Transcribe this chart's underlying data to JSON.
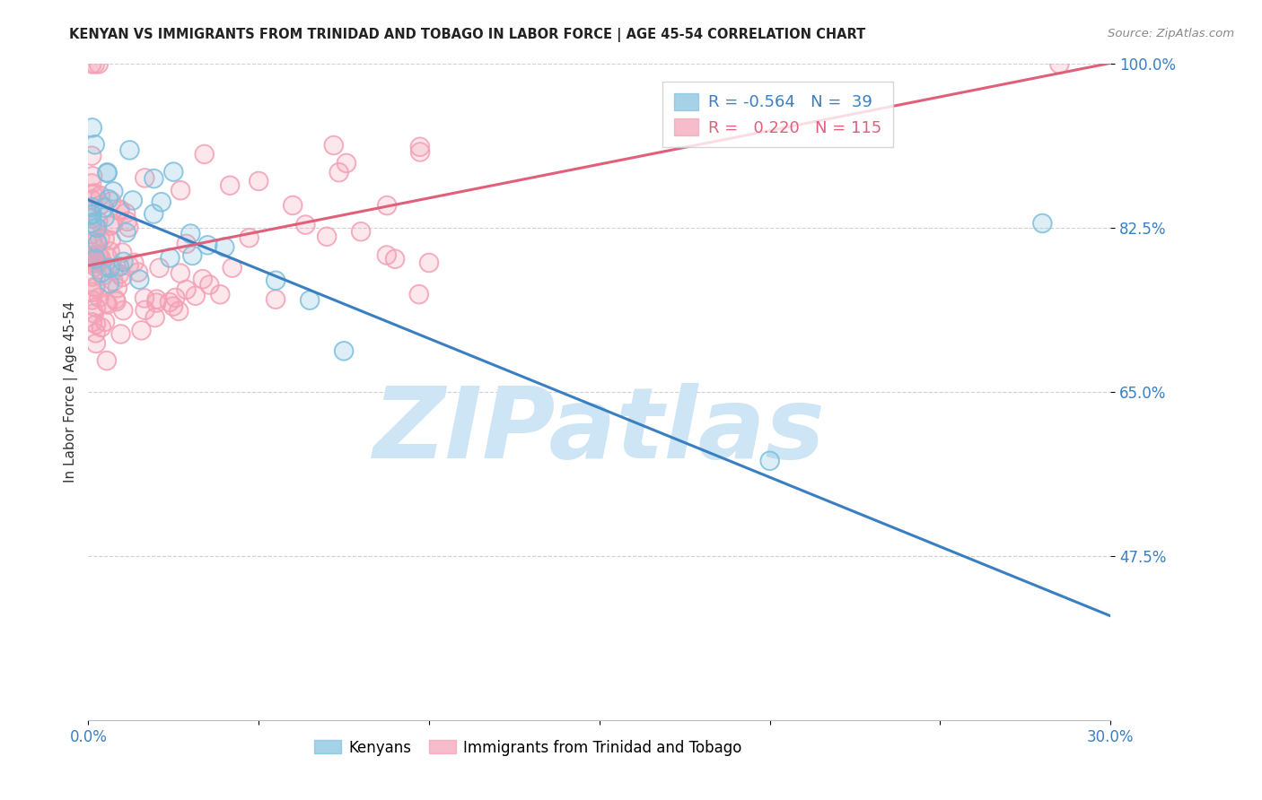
{
  "title": "KENYAN VS IMMIGRANTS FROM TRINIDAD AND TOBAGO IN LABOR FORCE | AGE 45-54 CORRELATION CHART",
  "source": "Source: ZipAtlas.com",
  "ylabel": "In Labor Force | Age 45-54",
  "xmin": 0.0,
  "xmax": 0.3,
  "ymin": 0.3,
  "ymax": 1.0,
  "ytick_vals": [
    0.475,
    0.65,
    0.825,
    1.0
  ],
  "ytick_labels": [
    "47.5%",
    "65.0%",
    "82.5%",
    "100.0%"
  ],
  "blue_color": "#7fbfdd",
  "pink_color": "#f4a0b5",
  "blue_line_color": "#3a7fc1",
  "pink_line_color": "#e0607a",
  "blue_line_intercept": 0.855,
  "blue_line_slope": -1.48,
  "pink_line_intercept": 0.785,
  "pink_line_slope": 0.72,
  "watermark": "ZIPatlas",
  "watermark_color": "#cde5f5",
  "background_color": "#ffffff",
  "legend_blue_label": "R = -0.564   N =  39",
  "legend_pink_label": "R =   0.220   N = 115"
}
